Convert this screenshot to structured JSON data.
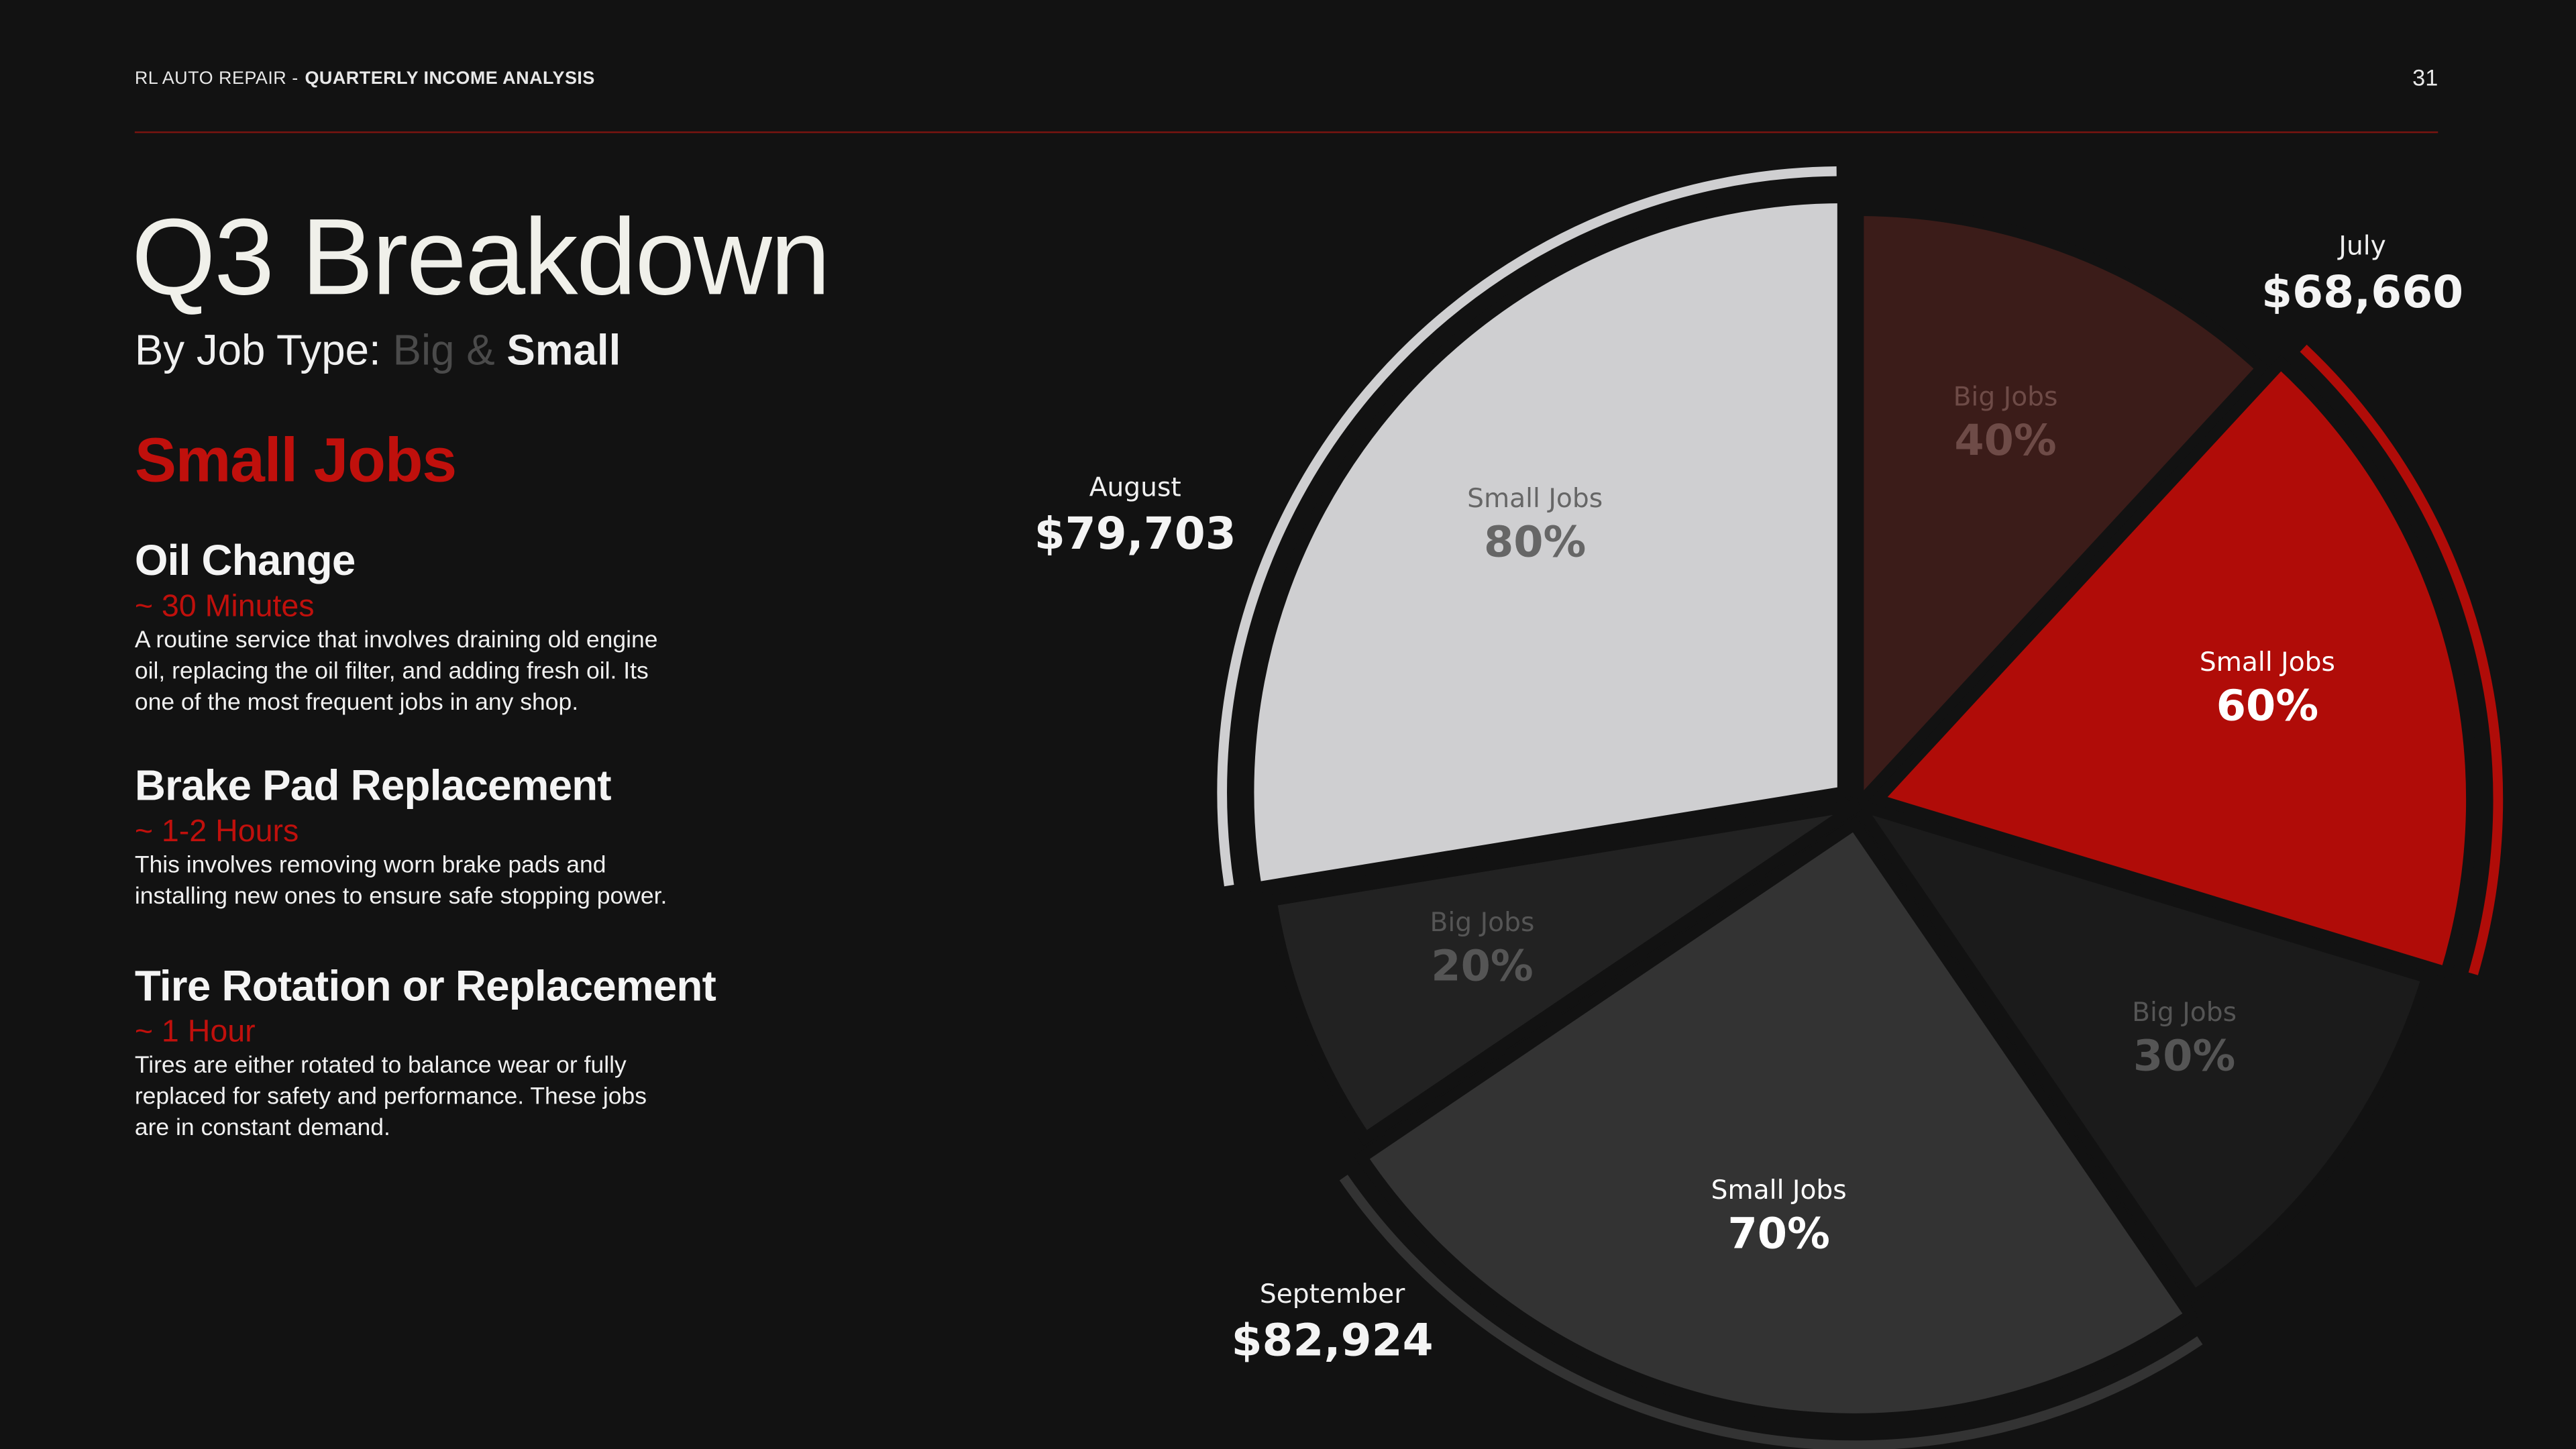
{
  "header": {
    "brand": "RL AUTO REPAIR -",
    "section": "QUARTERLY INCOME ANALYSIS",
    "page": "31"
  },
  "title": "Q3 Breakdown",
  "subtitle": {
    "prefix": "By Job Type:",
    "big": "Big",
    "amp": "&",
    "small": "Small"
  },
  "section_heading": "Small Jobs",
  "jobs": [
    {
      "name": "Oil Change",
      "duration": "~ 30 Minutes",
      "description": "A routine service that involves draining old engine oil, replacing the oil filter, and adding fresh oil. Its one of the most frequent jobs in any shop."
    },
    {
      "name": "Brake Pad Replacement",
      "duration": "~ 1-2 Hours",
      "description": "This involves removing worn brake pads and installing new ones to ensure safe stopping power."
    },
    {
      "name": "Tire Rotation or Replacement",
      "duration": "~ 1 Hour",
      "description": "Tires are either rotated to balance wear or fully replaced for safety and performance. These jobs are in constant demand."
    }
  ],
  "chart_data": {
    "type": "pie",
    "categories": [
      "July",
      "September",
      "August"
    ],
    "values": [
      68660,
      82924,
      79703
    ],
    "value_labels": [
      "$68,660",
      "$82,924",
      "$79,703"
    ],
    "series": [
      {
        "name": "Big Jobs",
        "values": [
          40,
          30,
          20
        ],
        "value_labels": [
          "40%",
          "30%",
          "20%"
        ],
        "colors": [
          "#3b1c19",
          "#1b1b1b",
          "#222222"
        ]
      },
      {
        "name": "Small Jobs",
        "values": [
          60,
          70,
          80
        ],
        "value_labels": [
          "60%",
          "70%",
          "80%"
        ],
        "colors": [
          "#b00c08",
          "#333333",
          "#cfcfd1"
        ]
      }
    ]
  }
}
